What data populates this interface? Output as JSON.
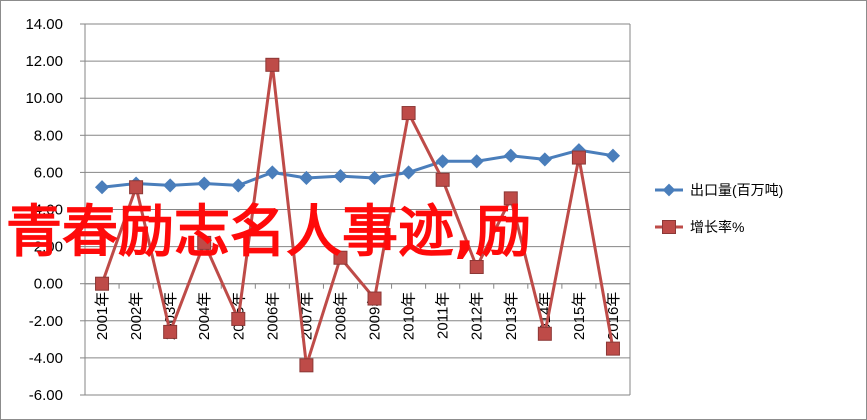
{
  "chart_data": {
    "type": "line",
    "categories": [
      "2001年",
      "2002年",
      "2003年",
      "2004年",
      "2005年",
      "2006年",
      "2007年",
      "2008年",
      "2009年",
      "2010年",
      "2011年",
      "2012年",
      "2013年",
      "2014年",
      "2015年",
      "2016年"
    ],
    "series": [
      {
        "name": "出口量(百万吨)",
        "color": "#4a7ebb",
        "marker": "diamond",
        "values": [
          5.2,
          5.4,
          5.3,
          5.4,
          5.3,
          6.0,
          5.7,
          5.8,
          5.7,
          6.0,
          6.6,
          6.6,
          6.9,
          6.7,
          7.2,
          6.9
        ]
      },
      {
        "name": "增长率%",
        "color": "#be4b48",
        "marker": "square",
        "values": [
          0.0,
          5.2,
          -2.6,
          2.2,
          -1.9,
          11.8,
          -4.4,
          1.4,
          -0.8,
          9.2,
          5.6,
          0.9,
          4.6,
          -2.7,
          6.8,
          -3.5
        ]
      }
    ],
    "y_ticks": [
      "-6.00",
      "-4.00",
      "-2.00",
      "0.00",
      "2.00",
      "4.00",
      "6.00",
      "8.00",
      "10.00",
      "12.00",
      "14.00"
    ],
    "ylim": [
      -6,
      14
    ],
    "grid": true,
    "legend_position": "right"
  },
  "overlay_text": "青春励志名人事迹,励"
}
